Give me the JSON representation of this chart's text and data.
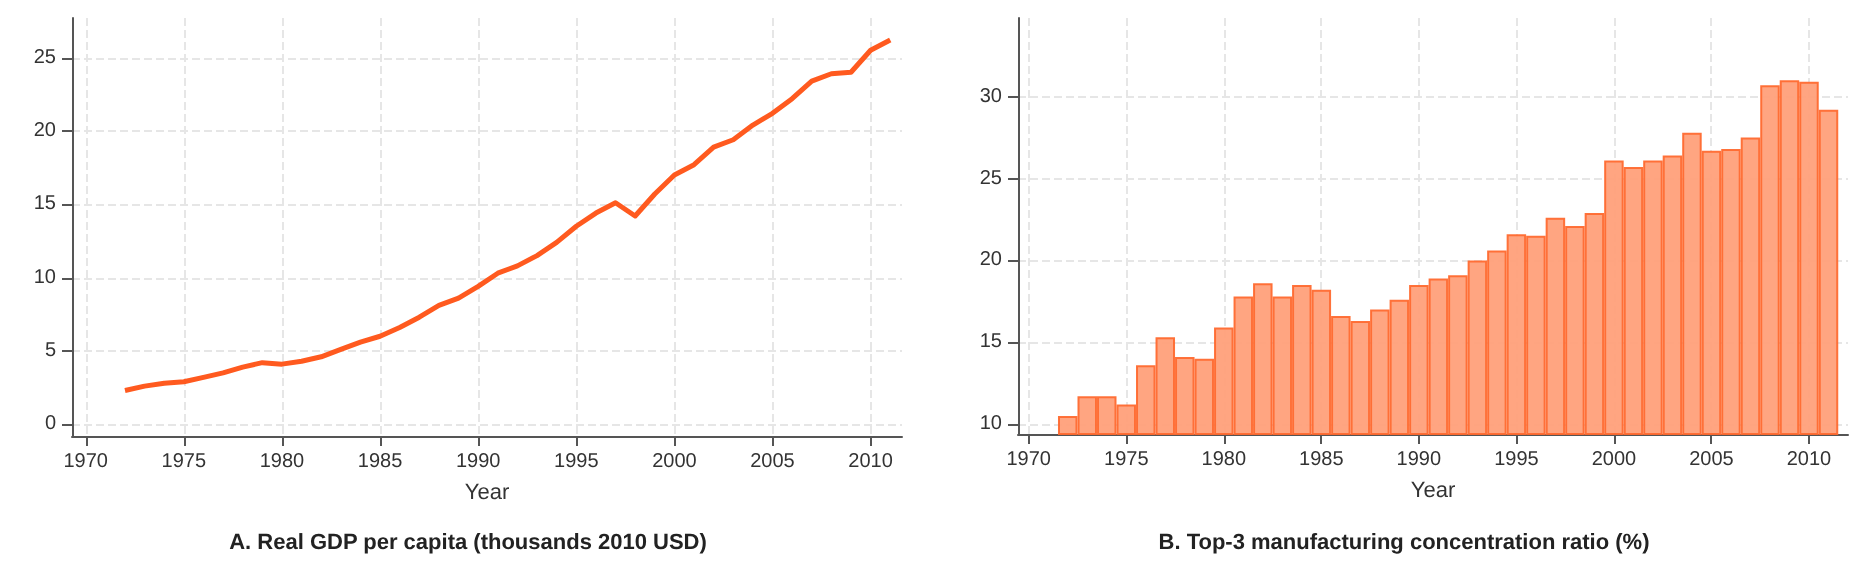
{
  "chart_data": [
    {
      "type": "line",
      "title": "A. Real GDP per capita (thousands 2010 USD)",
      "xlabel": "Year",
      "x": [
        1972,
        1973,
        1974,
        1975,
        1976,
        1977,
        1978,
        1979,
        1980,
        1981,
        1982,
        1983,
        1984,
        1985,
        1986,
        1987,
        1988,
        1989,
        1990,
        1991,
        1992,
        1993,
        1994,
        1995,
        1996,
        1997,
        1998,
        1999,
        2000,
        2001,
        2002,
        2003,
        2004,
        2005,
        2006,
        2007,
        2008,
        2009,
        2010,
        2011
      ],
      "series": [
        {
          "color": "#ff5a1f",
          "values": [
            2.3,
            2.6,
            2.8,
            2.9,
            3.2,
            3.5,
            3.9,
            4.2,
            4.1,
            4.3,
            4.6,
            5.1,
            5.6,
            6.0,
            6.6,
            7.3,
            8.1,
            8.6,
            9.4,
            10.3,
            10.8,
            11.5,
            12.4,
            13.5,
            14.4,
            15.1,
            14.2,
            15.7,
            17.0,
            17.7,
            18.9,
            19.4,
            20.4,
            21.2,
            22.2,
            23.4,
            23.9,
            24.0,
            25.5,
            26.2
          ]
        }
      ],
      "xlim": [
        1969.3,
        2011.6
      ],
      "xticks": [
        1970,
        1975,
        1980,
        1985,
        1990,
        1995,
        2000,
        2005,
        2010
      ],
      "ylim": [
        -0.8,
        27.7
      ],
      "yticks": [
        0,
        5,
        10,
        15,
        20,
        25
      ],
      "grid": true,
      "marker": "none",
      "line_style": "solid"
    },
    {
      "type": "bar",
      "title": "B. Top-3 manufacturing concentration ratio (%)",
      "xlabel": "Year",
      "x": [
        1972,
        1973,
        1974,
        1975,
        1976,
        1977,
        1978,
        1979,
        1980,
        1981,
        1982,
        1983,
        1984,
        1985,
        1986,
        1987,
        1988,
        1989,
        1990,
        1991,
        1992,
        1993,
        1994,
        1995,
        1996,
        1997,
        1998,
        1999,
        2000,
        2001,
        2002,
        2003,
        2004,
        2005,
        2006,
        2007,
        2008,
        2009,
        2010,
        2011
      ],
      "series": [
        {
          "color": "#ffa07a",
          "values": [
            10.5,
            11.7,
            11.7,
            11.2,
            13.6,
            15.3,
            14.1,
            14.0,
            15.9,
            17.8,
            18.6,
            17.8,
            18.5,
            18.2,
            16.6,
            16.3,
            17.0,
            17.6,
            18.5,
            18.9,
            19.1,
            20.0,
            20.6,
            21.6,
            21.5,
            22.6,
            22.1,
            22.9,
            26.1,
            25.7,
            26.1,
            26.4,
            27.8,
            26.7,
            26.8,
            27.5,
            30.7,
            31.0,
            30.9,
            29.2
          ]
        }
      ],
      "xlim": [
        1969.45,
        2012
      ],
      "xticks": [
        1970,
        1975,
        1980,
        1985,
        1990,
        1995,
        2000,
        2005,
        2010
      ],
      "ylim": [
        9.4,
        34.8
      ],
      "yticks": [
        10,
        15,
        20,
        25,
        30
      ],
      "grid": true
    }
  ]
}
